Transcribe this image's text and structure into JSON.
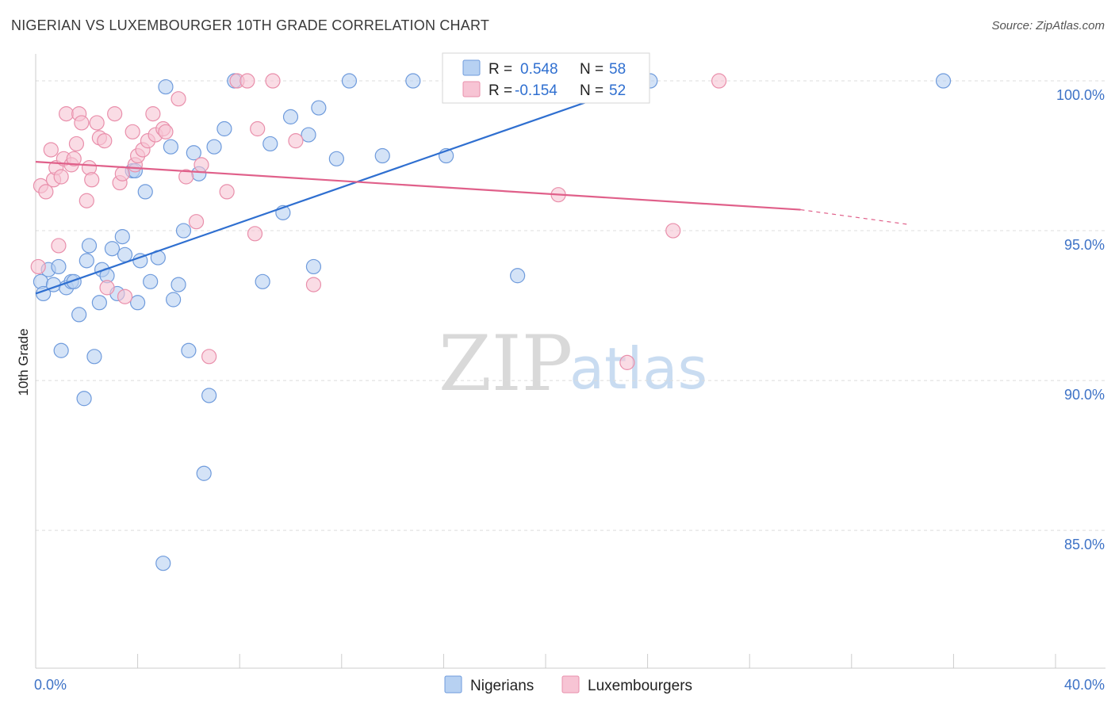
{
  "header": {
    "title": "NIGERIAN VS LUXEMBOURGER 10TH GRADE CORRELATION CHART",
    "source": "Source: ZipAtlas.com"
  },
  "watermark": {
    "zip": "ZIP",
    "atlas": "atlas"
  },
  "legend": {
    "rows": [
      {
        "r_label": "R =",
        "r_value": "0.548",
        "n_label": "N =",
        "n_value": "58"
      },
      {
        "r_label": "R =",
        "r_value": "-0.154",
        "n_label": "N =",
        "n_value": "52"
      }
    ]
  },
  "bottom_legend": {
    "items": [
      "Nigerians",
      "Luxembourgers"
    ]
  },
  "colors": {
    "nigerians_fill": "#b7d1f2",
    "nigerians_stroke": "#6f9bdc",
    "nigerians_line": "#2f6fd0",
    "luxembourgers_fill": "#f7c4d4",
    "luxembourgers_stroke": "#e98fab",
    "luxembourgers_line": "#e0608a",
    "tick_label": "#3d72c6",
    "grid": "#dcdcdc"
  },
  "chart_data": {
    "type": "scatter",
    "title": "NIGERIAN VS LUXEMBOURGER 10TH GRADE CORRELATION CHART",
    "xlabel": "",
    "ylabel": "10th Grade",
    "xlim": [
      0,
      40
    ],
    "ylim": [
      80.4,
      100.9
    ],
    "x_ticks": [
      {
        "value": 0,
        "label": "0.0%"
      },
      {
        "value": 40,
        "label": "40.0%"
      }
    ],
    "y_ticks": [
      {
        "value": 100,
        "label": "100.0%"
      },
      {
        "value": 95,
        "label": "95.0%"
      },
      {
        "value": 90,
        "label": "90.0%"
      },
      {
        "value": 85,
        "label": "85.0%"
      }
    ],
    "grid": true,
    "legend_position": "top-center",
    "series": [
      {
        "name": "Nigerians",
        "r": 0.548,
        "n": 58,
        "trend": {
          "x": [
            0,
            24
          ],
          "y": [
            92.9,
            100.0
          ]
        },
        "points": [
          [
            0.2,
            93.3
          ],
          [
            0.3,
            92.9
          ],
          [
            0.5,
            93.7
          ],
          [
            0.7,
            93.2
          ],
          [
            0.9,
            93.8
          ],
          [
            1.0,
            91.0
          ],
          [
            1.2,
            93.1
          ],
          [
            1.4,
            93.3
          ],
          [
            1.7,
            92.2
          ],
          [
            1.9,
            89.4
          ],
          [
            2.1,
            94.5
          ],
          [
            2.3,
            90.8
          ],
          [
            2.5,
            92.6
          ],
          [
            2.6,
            93.7
          ],
          [
            2.8,
            93.5
          ],
          [
            3.0,
            94.4
          ],
          [
            3.2,
            92.9
          ],
          [
            3.4,
            94.8
          ],
          [
            3.5,
            94.2
          ],
          [
            3.8,
            97.0
          ],
          [
            4.0,
            92.6
          ],
          [
            4.1,
            94.0
          ],
          [
            4.3,
            96.3
          ],
          [
            4.5,
            93.3
          ],
          [
            4.8,
            94.1
          ],
          [
            5.1,
            99.8
          ],
          [
            5.4,
            92.7
          ],
          [
            5.6,
            93.2
          ],
          [
            5.8,
            95.0
          ],
          [
            6.0,
            91.0
          ],
          [
            6.2,
            97.6
          ],
          [
            6.4,
            96.9
          ],
          [
            6.6,
            86.9
          ],
          [
            6.8,
            89.5
          ],
          [
            7.0,
            97.8
          ],
          [
            7.4,
            98.4
          ],
          [
            7.8,
            100.0
          ],
          [
            8.9,
            93.3
          ],
          [
            9.2,
            97.9
          ],
          [
            9.7,
            95.6
          ],
          [
            10.0,
            98.8
          ],
          [
            10.7,
            98.2
          ],
          [
            10.9,
            93.8
          ],
          [
            11.1,
            99.1
          ],
          [
            11.8,
            97.4
          ],
          [
            12.3,
            100.0
          ],
          [
            13.6,
            97.5
          ],
          [
            14.8,
            100.0
          ],
          [
            16.1,
            97.5
          ],
          [
            16.3,
            100.0
          ],
          [
            18.9,
            93.5
          ],
          [
            24.1,
            100.0
          ],
          [
            35.6,
            100.0
          ],
          [
            5.0,
            83.9
          ],
          [
            3.9,
            97.0
          ],
          [
            1.5,
            93.3
          ],
          [
            2.0,
            94.0
          ],
          [
            5.3,
            97.8
          ]
        ]
      },
      {
        "name": "Luxembourgers",
        "r": -0.154,
        "n": 52,
        "trend": {
          "x": [
            0,
            30
          ],
          "y": [
            97.3,
            95.7
          ]
        },
        "trend_dashed": {
          "x": [
            30,
            34.3
          ],
          "y": [
            95.7,
            95.2
          ]
        },
        "points": [
          [
            0.1,
            93.8
          ],
          [
            0.2,
            96.5
          ],
          [
            0.4,
            96.3
          ],
          [
            0.6,
            97.7
          ],
          [
            0.7,
            96.7
          ],
          [
            0.8,
            97.1
          ],
          [
            0.9,
            94.5
          ],
          [
            1.1,
            97.4
          ],
          [
            1.2,
            98.9
          ],
          [
            1.4,
            97.2
          ],
          [
            1.5,
            97.4
          ],
          [
            1.6,
            97.9
          ],
          [
            1.7,
            98.9
          ],
          [
            1.8,
            98.6
          ],
          [
            2.0,
            96.0
          ],
          [
            2.1,
            97.1
          ],
          [
            2.2,
            96.7
          ],
          [
            2.4,
            98.6
          ],
          [
            2.5,
            98.1
          ],
          [
            2.7,
            98.0
          ],
          [
            2.8,
            93.1
          ],
          [
            3.1,
            98.9
          ],
          [
            3.3,
            96.6
          ],
          [
            3.5,
            92.8
          ],
          [
            3.8,
            98.3
          ],
          [
            3.9,
            97.2
          ],
          [
            4.0,
            97.5
          ],
          [
            4.2,
            97.7
          ],
          [
            4.4,
            98.0
          ],
          [
            4.6,
            98.9
          ],
          [
            4.7,
            98.2
          ],
          [
            5.0,
            98.4
          ],
          [
            5.1,
            98.3
          ],
          [
            5.6,
            99.4
          ],
          [
            5.9,
            96.8
          ],
          [
            6.3,
            95.3
          ],
          [
            6.5,
            97.2
          ],
          [
            6.8,
            90.8
          ],
          [
            7.5,
            96.3
          ],
          [
            7.9,
            100.0
          ],
          [
            8.3,
            100.0
          ],
          [
            8.6,
            94.9
          ],
          [
            8.7,
            98.4
          ],
          [
            9.3,
            100.0
          ],
          [
            10.2,
            98.0
          ],
          [
            10.9,
            93.2
          ],
          [
            20.5,
            96.2
          ],
          [
            23.2,
            90.6
          ],
          [
            25.0,
            95.0
          ],
          [
            26.8,
            100.0
          ],
          [
            1.0,
            96.8
          ],
          [
            3.4,
            96.9
          ]
        ]
      }
    ]
  }
}
